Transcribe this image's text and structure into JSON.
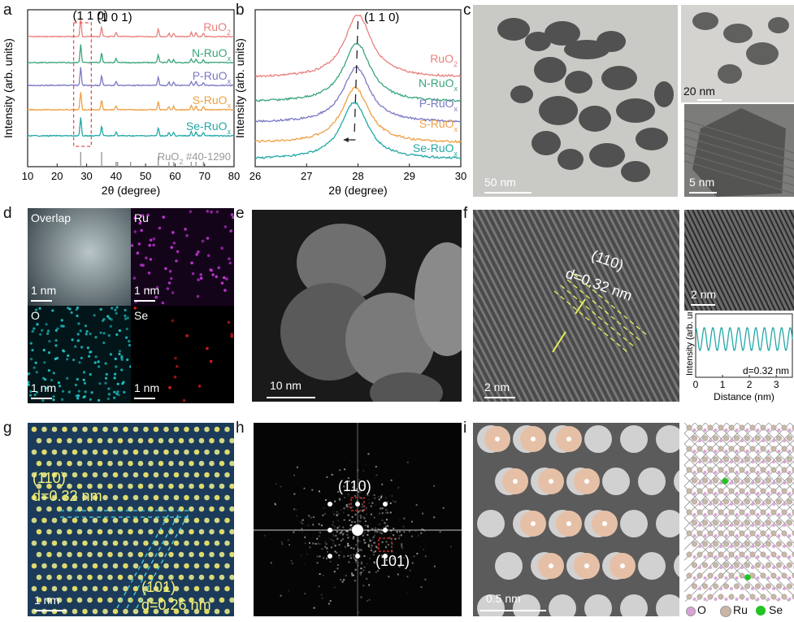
{
  "panels": {
    "a": {
      "letter": "a",
      "peak1": "(1 1 0)",
      "peak2": "(1 0 1)",
      "xlabel": "2θ (degree)",
      "ylabel": "Intensity (arb. units)",
      "series": [
        {
          "name": "RuO",
          "sub": "2",
          "color": "#e8807e"
        },
        {
          "name": "N-RuO",
          "sub": "x",
          "color": "#3aa57a"
        },
        {
          "name": "P-RuO",
          "sub": "x",
          "color": "#7a78c4"
        },
        {
          "name": "S-RuO",
          "sub": "x",
          "color": "#f0a046"
        },
        {
          "name": "Se-RuO",
          "sub": "x",
          "color": "#22a8a6"
        }
      ],
      "ref_label": "RuO",
      "ref_sub": "2",
      "ref_id": " #40-1290",
      "xticks": [
        "10",
        "20",
        "30",
        "40",
        "50",
        "60",
        "70",
        "80"
      ]
    },
    "b": {
      "letter": "b",
      "peak": "(1 1 0)",
      "xlabel": "2θ (degree)",
      "ylabel": "Intensity (arb. units)",
      "xticks": [
        "26",
        "27",
        "28",
        "29",
        "30"
      ]
    },
    "c": {
      "letter": "c",
      "scale1": "50 nm",
      "scale2": "20 nm",
      "scale3": "5 nm"
    },
    "d": {
      "letter": "d",
      "overlap": "Overlap",
      "ru": "Ru",
      "o": "O",
      "se": "Se",
      "scale": "1 nm"
    },
    "e": {
      "letter": "e",
      "scale": "10 nm"
    },
    "f": {
      "letter": "f",
      "plane": "(110)",
      "dspacing": "d=0.32 nm",
      "scale1": "2 nm",
      "scale2": "2 nm",
      "inset_ylabel": "Intensity (arb. units)",
      "inset_xlabel": "Distance (nm)",
      "inset_d": "d=0.32 nm",
      "inset_xticks": [
        "0",
        "1",
        "2",
        "3"
      ]
    },
    "g": {
      "letter": "g",
      "plane1": "(110)",
      "d1": "d=0.32 nm",
      "plane2": "(101)",
      "d2": "d=0.26 nm",
      "scale": "1 nm"
    },
    "h": {
      "letter": "h",
      "spot1": "(110)",
      "spot2": "(101)"
    },
    "i": {
      "letter": "i",
      "scale": "0.5 nm",
      "legend_o": "O",
      "legend_ru": "Ru",
      "legend_se": "Se"
    }
  },
  "chart_data": [
    {
      "type": "line",
      "panel": "a",
      "title": "",
      "xlabel": "2θ (degree)",
      "ylabel": "Intensity (arb. units)",
      "xlim": [
        10,
        80
      ],
      "series": [
        {
          "name": "RuO2",
          "peaks_2theta": [
            28.0,
            35.1,
            40.0,
            54.3,
            57.9,
            59.5,
            65.5,
            67.1,
            69.6
          ]
        },
        {
          "name": "N-RuOx",
          "peaks_2theta": [
            28.0,
            35.1,
            40.0,
            54.3,
            57.9,
            59.5,
            65.5,
            67.1,
            69.6
          ]
        },
        {
          "name": "P-RuOx",
          "peaks_2theta": [
            28.0,
            35.1,
            40.0,
            54.3,
            57.9,
            59.5,
            65.5,
            67.1,
            69.6
          ]
        },
        {
          "name": "S-RuOx",
          "peaks_2theta": [
            28.0,
            35.1,
            40.0,
            54.3,
            57.9,
            59.5,
            65.5,
            67.1,
            69.6
          ]
        },
        {
          "name": "Se-RuOx",
          "peaks_2theta": [
            28.0,
            35.1,
            40.0,
            54.3,
            57.9,
            59.5,
            65.5,
            67.1,
            69.6
          ]
        }
      ],
      "reference": {
        "name": "RuO2 #40-1290",
        "lines_2theta": [
          28.0,
          35.1,
          40.0,
          40.5,
          44.9,
          54.3,
          57.9,
          59.5,
          65.5,
          67.1,
          69.6
        ]
      }
    },
    {
      "type": "line",
      "panel": "b",
      "title": "",
      "xlabel": "2θ (degree)",
      "ylabel": "Intensity (arb. units)",
      "xlim": [
        26,
        30
      ],
      "series": [
        {
          "name": "RuO2",
          "peak": 28.0
        },
        {
          "name": "N-RuOx",
          "peak": 27.98
        },
        {
          "name": "P-RuOx",
          "peak": 27.97
        },
        {
          "name": "S-RuOx",
          "peak": 27.95
        },
        {
          "name": "Se-RuOx",
          "peak": 27.93
        }
      ]
    },
    {
      "type": "line",
      "panel": "f-inset",
      "xlabel": "Distance (nm)",
      "ylabel": "Intensity (arb. units)",
      "xlim": [
        0,
        3.6
      ],
      "period_nm": 0.32
    }
  ]
}
